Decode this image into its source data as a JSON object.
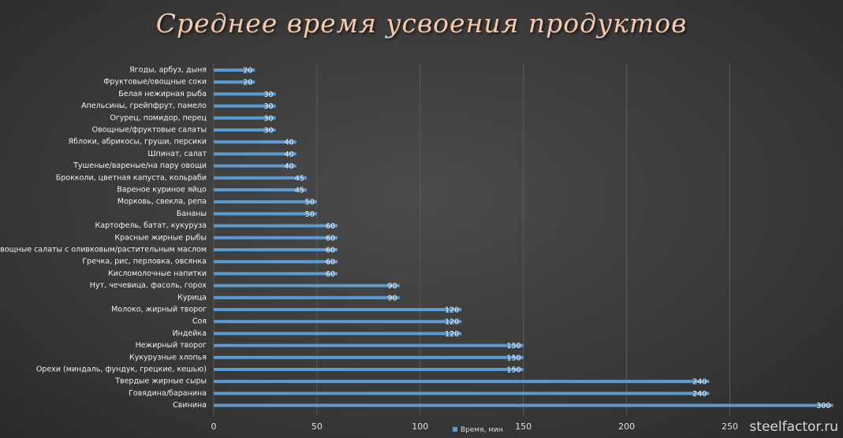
{
  "chart_data": {
    "type": "bar",
    "orientation": "horizontal",
    "title": "Среднее время усвоения продуктов",
    "categories": [
      "Ягоды, арбуз, дыня",
      "Фруктовые/овощные соки",
      "Белая нежирная рыба",
      "Апельсины, грейпфрут, памело",
      "Огурец, помидор, перец",
      "Овощные/фруктовые салаты",
      "Яблоки, абрикосы, груши, персики",
      "Шпинат, салат",
      "Тушеные/вареные/на пару овощи",
      "Брокколи, цветная капуста, кольраби",
      "Вареное куриное яйцо",
      "Морковь, свекла, репа",
      "Бананы",
      "Картофель, батат, кукуруза",
      "Красные жирные рыбы",
      "Овощные салаты с оливковым/растительным маслом",
      "Гречка, рис, перловка, овсянка",
      "Кисломолочные напитки",
      "Нут, чечевица, фасоль, горох",
      "Курица",
      "Молоко, жирный творог",
      "Соя",
      "Индейка",
      "Нежирный творог",
      "Кукурузные хлопья",
      "Орехи (миндаль, фундук, грецкие, кешью)",
      "Твердые жирные сыры",
      "Говядина/баранина",
      "Свинина"
    ],
    "series": [
      {
        "name": "Время, мин",
        "values": [
          20,
          20,
          30,
          30,
          30,
          30,
          40,
          40,
          40,
          45,
          45,
          50,
          50,
          60,
          60,
          60,
          60,
          60,
          90,
          90,
          120,
          120,
          120,
          150,
          150,
          150,
          240,
          240,
          300
        ]
      }
    ],
    "xlim": [
      0,
      300
    ],
    "xticks": [
      0,
      50,
      100,
      150,
      200,
      250
    ],
    "grid": true,
    "legend_position": "bottom",
    "bar_color": "#5b9bd5"
  },
  "watermark": "steelfactor.ru"
}
